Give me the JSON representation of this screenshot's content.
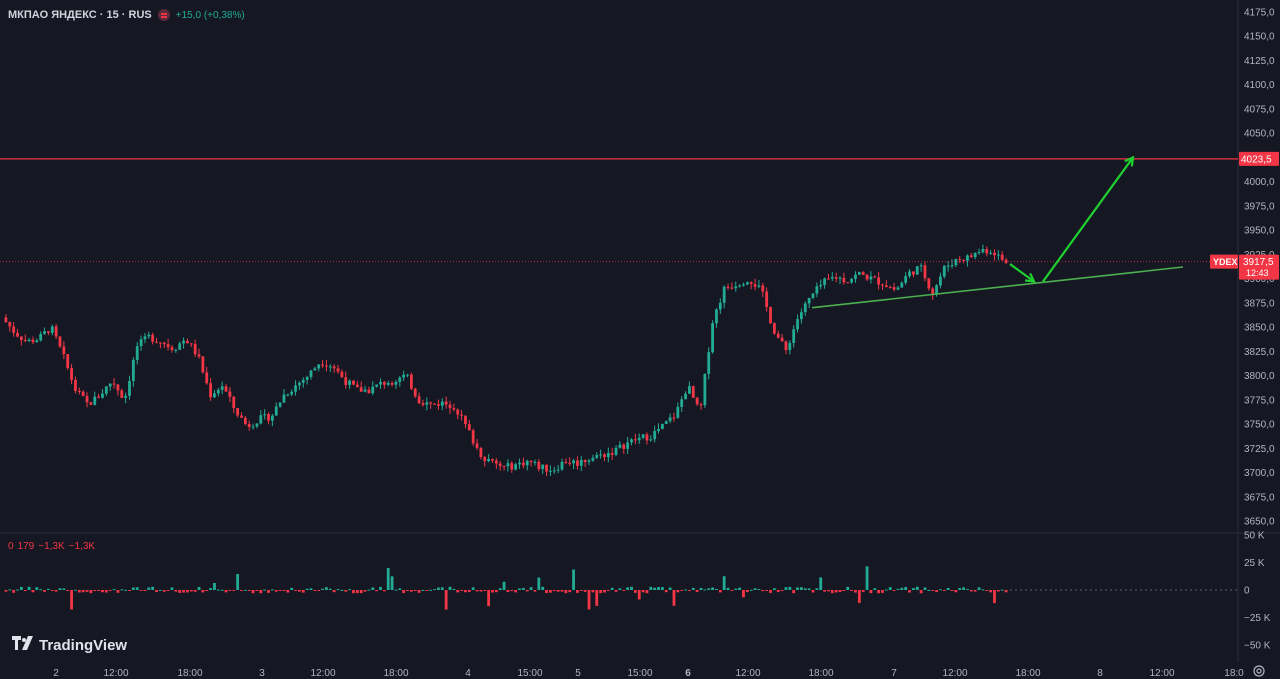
{
  "header": {
    "symbol": "МКПАО ЯНДЕКС · 15 · RUS",
    "change": "+15,0 (+0,38%)"
  },
  "volume_header": {
    "v0": "0",
    "v1": "179",
    "v2": "−1,3K",
    "v3": "−1,3K"
  },
  "logo": {
    "text": "TradingView",
    "icon": "tradingview-logo-icon"
  },
  "settings_icon": "gear-icon",
  "colors": {
    "background": "#151823",
    "up": "#22ab94",
    "down": "#f23645",
    "resistance": "#f23645",
    "trendline": "#4caf50",
    "arrow": "#1fd12f",
    "axis_text": "#b2b5be"
  },
  "chart_data": {
    "type": "candlestick",
    "symbol_label": "YDEX",
    "price_axis": {
      "min": 3650,
      "max": 4175,
      "ticks": [
        "4175,0",
        "4150,0",
        "4125,0",
        "4100,0",
        "4075,0",
        "4050,0",
        "4023,5",
        "4000,0",
        "3975,0",
        "3950,0",
        "3925,0",
        "3900,0",
        "3875,0",
        "3850,0",
        "3825,0",
        "3800,0",
        "3775,0",
        "3750,0",
        "3725,0",
        "3700,0",
        "3675,0",
        "3650,0"
      ]
    },
    "volume_axis": {
      "ticks": [
        "50 K",
        "25 K",
        "0",
        "−25 K",
        "−50 K"
      ],
      "range": [
        -50000,
        50000
      ]
    },
    "time_axis": {
      "labels": [
        "2",
        "12:00",
        "18:00",
        "3",
        "12:00",
        "18:00",
        "4",
        "15:00",
        "5",
        "15:00",
        "6",
        "12:00",
        "18:00",
        "7",
        "12:00",
        "18:00",
        "8",
        "12:00",
        "18:0"
      ],
      "bold": [
        "6"
      ]
    },
    "resistance_level": {
      "value": 4023.5,
      "label": "4023,5"
    },
    "last_price": {
      "value": 3917.5,
      "label": "3917,5",
      "time_left": "12:43",
      "ticker": "YDEX"
    },
    "trendline": {
      "from_price": 3870,
      "to_price": 3912
    },
    "forecast_arrows": [
      {
        "from": 3915,
        "to": 3897
      },
      {
        "from": 3897,
        "to": 4025
      }
    ],
    "close_path": [
      3860,
      3845,
      3835,
      3838,
      3850,
      3820,
      3785,
      3770,
      3780,
      3795,
      3775,
      3830,
      3840,
      3835,
      3828,
      3838,
      3820,
      3780,
      3790,
      3765,
      3748,
      3755,
      3758,
      3780,
      3790,
      3800,
      3815,
      3810,
      3795,
      3785,
      3785,
      3792,
      3795,
      3800,
      3775,
      3770,
      3772,
      3768,
      3745,
      3720,
      3710,
      3705,
      3708,
      3712,
      3705,
      3703,
      3712,
      3710,
      3715,
      3718,
      3722,
      3730,
      3735,
      3738,
      3748,
      3760,
      3790,
      3760,
      3855,
      3890,
      3895,
      3900,
      3888,
      3848,
      3825,
      3860,
      3880,
      3895,
      3902,
      3898,
      3905,
      3900,
      3895,
      3888,
      3905,
      3912,
      3885,
      3912,
      3920,
      3922,
      3930,
      3928,
      3915
    ]
  }
}
